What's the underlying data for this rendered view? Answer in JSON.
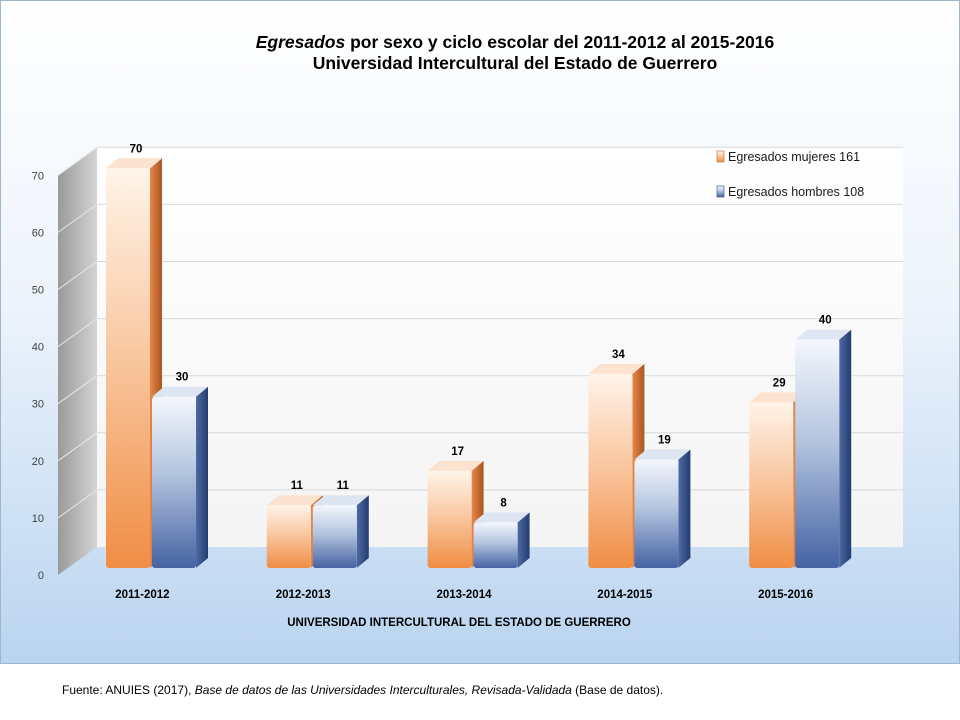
{
  "title": {
    "line1_italic": "Egresados",
    "line1_rest": " por sexo y ciclo escolar del 2011-2012 al 2015-2016",
    "line2": "Universidad Intercultural del Estado de Guerrero"
  },
  "source": {
    "prefix": "Fuente: ANUIES (2017),  ",
    "italic": "Base de datos de las Universidades  Interculturales, Revisada-Validada",
    "suffix": "  (Base de datos)."
  },
  "chart_data": {
    "type": "bar",
    "title": "Egresados por sexo y ciclo escolar del 2011-2012 al 2015-2016 Universidad Intercultural del Estado de Guerrero",
    "categories": [
      "2011-2012",
      "2012-2013",
      "2013-2014",
      "2014-2015",
      "2015-2016"
    ],
    "series": [
      {
        "name": "Egresados mujeres  161",
        "values": [
          70,
          11,
          17,
          34,
          29
        ],
        "color": "#f0904a"
      },
      {
        "name": "Egresados hombres  108",
        "values": [
          30,
          11,
          8,
          19,
          40
        ],
        "color": "#4a6aa8"
      }
    ],
    "xlabel": "UNIVERSIDAD INTERCULTURAL DEL ESTADO DE GUERRERO",
    "ylabel": "",
    "ylim": [
      0,
      70
    ],
    "yticks": [
      0,
      10,
      20,
      30,
      40,
      50,
      60,
      70
    ],
    "grid": true,
    "legend": "top-right",
    "style": "3d-cylinder-bars"
  }
}
